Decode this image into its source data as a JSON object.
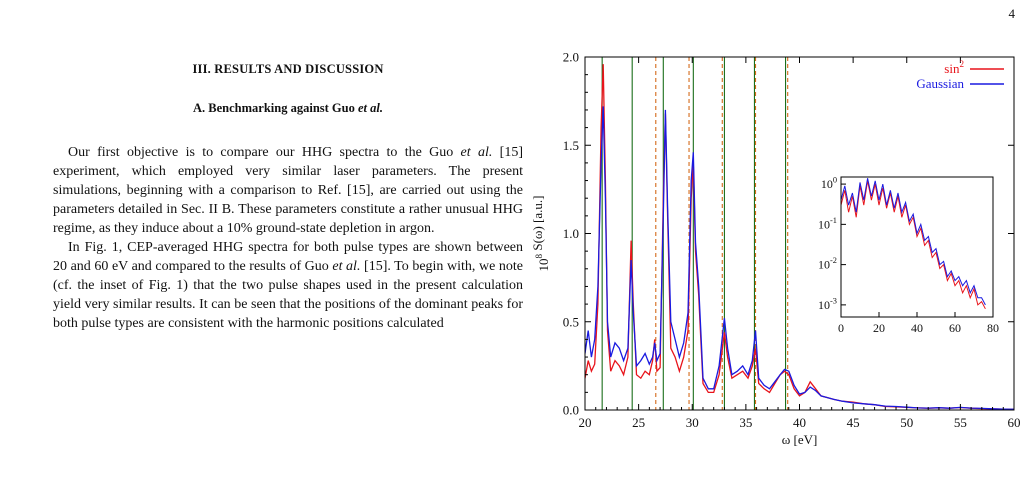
{
  "page": {
    "number": "4"
  },
  "section": {
    "heading": "III.   RESULTS AND DISCUSSION",
    "subsection_prefix": "A.   Benchmarking against Guo ",
    "subsection_italic": "et al.",
    "paragraphs": [
      [
        {
          "t": "Our first objective is to compare our HHG spectra to the Guo "
        },
        {
          "t": "et al.",
          "i": true
        },
        {
          "t": " [15] experiment, which employed very similar laser parameters. The present simulations, beginning with a comparison to Ref. [15], are carried out using the parameters detailed in Sec. II B. These parameters constitute a rather unusual HHG regime, as they induce about a 10% ground-state depletion in argon."
        }
      ],
      [
        {
          "t": "In Fig. 1, CEP-averaged HHG spectra for both pulse types are shown between 20 and 60 eV and compared to the results of Guo "
        },
        {
          "t": "et al.",
          "i": true
        },
        {
          "t": " [15]. To begin with, we note (cf. the inset of Fig. 1) that the two pulse shapes used in the present calculation yield very similar results. It can be seen that the positions of the dominant peaks for both pulse types are consistent with the harmonic positions calculated"
        }
      ]
    ]
  },
  "chart_data": [
    {
      "type": "line",
      "title": "",
      "xlabel": "ω [eV]",
      "ylabel": "10^8 S(ω) [a.u.]",
      "xlim": [
        20,
        60
      ],
      "ylim": [
        0,
        2.0
      ],
      "x_ticks": [
        20,
        25,
        30,
        35,
        40,
        45,
        50,
        55,
        60
      ],
      "y_ticks": [
        0.0,
        0.5,
        1.0,
        1.5,
        2.0
      ],
      "y_tick_labels": [
        "0.0",
        "0.5",
        "1.0",
        "1.5",
        "2.0"
      ],
      "legend_position": "top-right",
      "grid": false,
      "vertical_lines_solid": [
        21.6,
        24.4,
        27.3,
        30.1,
        33.0,
        35.8,
        38.7
      ],
      "vertical_lines_dashed": [
        26.6,
        29.7,
        32.8,
        35.9,
        38.9
      ],
      "vertical_line_colors": {
        "solid": "#1a6e1a",
        "dashed": "#d46a1a"
      },
      "series": [
        {
          "name": "sin²",
          "color": "#e8141b",
          "points": [
            [
              20.0,
              0.18
            ],
            [
              20.3,
              0.28
            ],
            [
              20.6,
              0.22
            ],
            [
              20.9,
              0.26
            ],
            [
              21.2,
              0.6
            ],
            [
              21.5,
              1.6
            ],
            [
              21.7,
              1.96
            ],
            [
              21.9,
              1.3
            ],
            [
              22.1,
              0.45
            ],
            [
              22.4,
              0.22
            ],
            [
              22.8,
              0.28
            ],
            [
              23.2,
              0.25
            ],
            [
              23.6,
              0.2
            ],
            [
              24.0,
              0.3
            ],
            [
              24.3,
              0.96
            ],
            [
              24.5,
              0.6
            ],
            [
              24.8,
              0.2
            ],
            [
              25.2,
              0.18
            ],
            [
              25.6,
              0.22
            ],
            [
              26.0,
              0.2
            ],
            [
              26.3,
              0.28
            ],
            [
              26.5,
              0.4
            ],
            [
              26.7,
              0.22
            ],
            [
              27.0,
              0.24
            ],
            [
              27.3,
              1.2
            ],
            [
              27.5,
              1.68
            ],
            [
              27.7,
              1.1
            ],
            [
              28.0,
              0.35
            ],
            [
              28.4,
              0.3
            ],
            [
              28.8,
              0.22
            ],
            [
              29.2,
              0.3
            ],
            [
              29.6,
              0.45
            ],
            [
              29.9,
              1.2
            ],
            [
              30.1,
              1.4
            ],
            [
              30.3,
              0.9
            ],
            [
              30.6,
              0.65
            ],
            [
              30.8,
              0.4
            ],
            [
              31.0,
              0.15
            ],
            [
              31.5,
              0.1
            ],
            [
              32.0,
              0.1
            ],
            [
              32.5,
              0.2
            ],
            [
              33.0,
              0.44
            ],
            [
              33.3,
              0.3
            ],
            [
              33.7,
              0.18
            ],
            [
              34.2,
              0.2
            ],
            [
              34.7,
              0.22
            ],
            [
              35.2,
              0.18
            ],
            [
              35.6,
              0.25
            ],
            [
              35.9,
              0.35
            ],
            [
              36.2,
              0.15
            ],
            [
              36.7,
              0.12
            ],
            [
              37.2,
              0.1
            ],
            [
              37.7,
              0.15
            ],
            [
              38.2,
              0.2
            ],
            [
              38.6,
              0.22
            ],
            [
              39.0,
              0.2
            ],
            [
              39.5,
              0.12
            ],
            [
              40.0,
              0.08
            ],
            [
              40.5,
              0.1
            ],
            [
              41.0,
              0.16
            ],
            [
              41.5,
              0.12
            ],
            [
              42.0,
              0.08
            ],
            [
              42.6,
              0.07
            ],
            [
              43.2,
              0.06
            ],
            [
              44.0,
              0.05
            ],
            [
              45.0,
              0.045
            ],
            [
              46.0,
              0.035
            ],
            [
              47.0,
              0.03
            ],
            [
              48.0,
              0.02
            ],
            [
              49.0,
              0.018
            ],
            [
              50.0,
              0.015
            ],
            [
              51.0,
              0.012
            ],
            [
              52.0,
              0.01
            ],
            [
              53.0,
              0.012
            ],
            [
              54.0,
              0.01
            ],
            [
              55.0,
              0.014
            ],
            [
              56.0,
              0.01
            ],
            [
              57.0,
              0.008
            ],
            [
              58.0,
              0.006
            ],
            [
              59.0,
              0.005
            ],
            [
              60.0,
              0.004
            ]
          ]
        },
        {
          "name": "Gaussian",
          "color": "#1a1ae0",
          "points": [
            [
              20.0,
              0.32
            ],
            [
              20.3,
              0.45
            ],
            [
              20.6,
              0.3
            ],
            [
              20.9,
              0.4
            ],
            [
              21.2,
              0.7
            ],
            [
              21.5,
              1.4
            ],
            [
              21.7,
              1.72
            ],
            [
              21.9,
              1.2
            ],
            [
              22.1,
              0.5
            ],
            [
              22.4,
              0.3
            ],
            [
              22.8,
              0.38
            ],
            [
              23.2,
              0.35
            ],
            [
              23.6,
              0.28
            ],
            [
              24.0,
              0.35
            ],
            [
              24.3,
              0.85
            ],
            [
              24.5,
              0.55
            ],
            [
              24.8,
              0.25
            ],
            [
              25.2,
              0.28
            ],
            [
              25.6,
              0.32
            ],
            [
              26.0,
              0.26
            ],
            [
              26.3,
              0.3
            ],
            [
              26.5,
              0.38
            ],
            [
              26.7,
              0.28
            ],
            [
              27.0,
              0.32
            ],
            [
              27.3,
              1.1
            ],
            [
              27.5,
              1.7
            ],
            [
              27.7,
              1.15
            ],
            [
              28.0,
              0.5
            ],
            [
              28.4,
              0.4
            ],
            [
              28.8,
              0.3
            ],
            [
              29.2,
              0.38
            ],
            [
              29.6,
              0.55
            ],
            [
              29.9,
              1.3
            ],
            [
              30.1,
              1.46
            ],
            [
              30.3,
              0.95
            ],
            [
              30.6,
              0.7
            ],
            [
              30.8,
              0.45
            ],
            [
              31.0,
              0.18
            ],
            [
              31.5,
              0.12
            ],
            [
              32.0,
              0.12
            ],
            [
              32.5,
              0.25
            ],
            [
              33.0,
              0.52
            ],
            [
              33.3,
              0.35
            ],
            [
              33.7,
              0.2
            ],
            [
              34.2,
              0.22
            ],
            [
              34.7,
              0.25
            ],
            [
              35.2,
              0.2
            ],
            [
              35.6,
              0.28
            ],
            [
              35.9,
              0.45
            ],
            [
              36.2,
              0.18
            ],
            [
              36.7,
              0.14
            ],
            [
              37.2,
              0.12
            ],
            [
              37.7,
              0.16
            ],
            [
              38.2,
              0.2
            ],
            [
              38.6,
              0.23
            ],
            [
              39.0,
              0.22
            ],
            [
              39.5,
              0.14
            ],
            [
              40.0,
              0.09
            ],
            [
              40.5,
              0.1
            ],
            [
              41.0,
              0.13
            ],
            [
              41.5,
              0.11
            ],
            [
              42.0,
              0.08
            ],
            [
              42.6,
              0.07
            ],
            [
              43.2,
              0.06
            ],
            [
              44.0,
              0.05
            ],
            [
              45.0,
              0.04
            ],
            [
              46.0,
              0.035
            ],
            [
              47.0,
              0.03
            ],
            [
              48.0,
              0.022
            ],
            [
              49.0,
              0.02
            ],
            [
              50.0,
              0.016
            ],
            [
              51.0,
              0.012
            ],
            [
              52.0,
              0.011
            ],
            [
              53.0,
              0.013
            ],
            [
              54.0,
              0.01
            ],
            [
              55.0,
              0.015
            ],
            [
              56.0,
              0.011
            ],
            [
              57.0,
              0.009
            ],
            [
              58.0,
              0.007
            ],
            [
              59.0,
              0.005
            ],
            [
              60.0,
              0.004
            ]
          ]
        }
      ]
    },
    {
      "type": "line",
      "title": "",
      "xlabel": "",
      "ylabel": "",
      "xlim": [
        0,
        80
      ],
      "ylim": [
        0.0005,
        1.5
      ],
      "y_scale": "log",
      "x_ticks": [
        0,
        20,
        40,
        60,
        80
      ],
      "y_ticks": [
        1,
        0.1,
        0.01,
        0.001
      ],
      "y_tick_labels": [
        "10^0",
        "10^-1",
        "10^-2",
        "10^-3"
      ],
      "grid": false,
      "series": [
        {
          "color": "#e8141b",
          "points": [
            [
              0,
              0.3
            ],
            [
              2,
              0.7
            ],
            [
              4,
              0.2
            ],
            [
              6,
              0.5
            ],
            [
              8,
              0.15
            ],
            [
              10,
              0.9
            ],
            [
              12,
              0.3
            ],
            [
              14,
              1.2
            ],
            [
              16,
              0.4
            ],
            [
              18,
              1.0
            ],
            [
              20,
              0.3
            ],
            [
              22,
              0.8
            ],
            [
              24,
              0.25
            ],
            [
              26,
              0.6
            ],
            [
              28,
              0.2
            ],
            [
              30,
              0.5
            ],
            [
              32,
              0.15
            ],
            [
              34,
              0.3
            ],
            [
              36,
              0.1
            ],
            [
              38,
              0.15
            ],
            [
              40,
              0.05
            ],
            [
              42,
              0.08
            ],
            [
              44,
              0.03
            ],
            [
              46,
              0.04
            ],
            [
              48,
              0.015
            ],
            [
              50,
              0.02
            ],
            [
              52,
              0.008
            ],
            [
              54,
              0.01
            ],
            [
              56,
              0.004
            ],
            [
              58,
              0.006
            ],
            [
              60,
              0.003
            ],
            [
              62,
              0.004
            ],
            [
              64,
              0.002
            ],
            [
              66,
              0.003
            ],
            [
              68,
              0.0015
            ],
            [
              70,
              0.0025
            ],
            [
              72,
              0.001
            ],
            [
              74,
              0.0012
            ],
            [
              76,
              0.0008
            ]
          ]
        },
        {
          "color": "#1a1ae0",
          "points": [
            [
              0,
              0.4
            ],
            [
              2,
              0.9
            ],
            [
              4,
              0.3
            ],
            [
              6,
              0.6
            ],
            [
              8,
              0.2
            ],
            [
              10,
              1.1
            ],
            [
              12,
              0.4
            ],
            [
              14,
              1.4
            ],
            [
              16,
              0.5
            ],
            [
              18,
              1.2
            ],
            [
              20,
              0.4
            ],
            [
              22,
              1.0
            ],
            [
              24,
              0.3
            ],
            [
              26,
              0.7
            ],
            [
              28,
              0.25
            ],
            [
              30,
              0.6
            ],
            [
              32,
              0.2
            ],
            [
              34,
              0.35
            ],
            [
              36,
              0.12
            ],
            [
              38,
              0.18
            ],
            [
              40,
              0.06
            ],
            [
              42,
              0.1
            ],
            [
              44,
              0.04
            ],
            [
              46,
              0.05
            ],
            [
              48,
              0.02
            ],
            [
              50,
              0.025
            ],
            [
              52,
              0.01
            ],
            [
              54,
              0.012
            ],
            [
              56,
              0.005
            ],
            [
              58,
              0.007
            ],
            [
              60,
              0.004
            ],
            [
              62,
              0.005
            ],
            [
              64,
              0.003
            ],
            [
              66,
              0.004
            ],
            [
              68,
              0.002
            ],
            [
              70,
              0.003
            ],
            [
              72,
              0.0015
            ],
            [
              74,
              0.0015
            ],
            [
              76,
              0.001
            ]
          ]
        }
      ]
    }
  ]
}
